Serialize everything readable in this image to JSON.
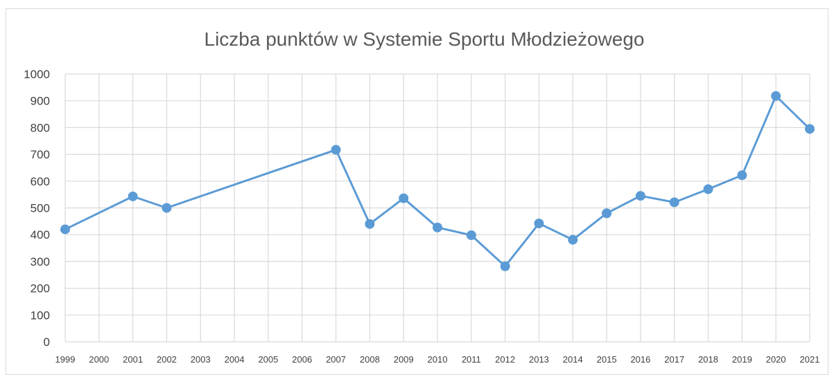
{
  "chart_data": {
    "type": "line",
    "title": "Liczba punktów w Systemie Sportu Młodzieżowego",
    "xlabel": "",
    "ylabel": "",
    "ylim": [
      0,
      1000
    ],
    "yticks": [
      0,
      100,
      200,
      300,
      400,
      500,
      600,
      700,
      800,
      900,
      1000
    ],
    "categories": [
      "1999",
      "2000",
      "2001",
      "2002",
      "2003",
      "2004",
      "2005",
      "2006",
      "2007",
      "2008",
      "2009",
      "2010",
      "2011",
      "2012",
      "2013",
      "2014",
      "2015",
      "2016",
      "2017",
      "2018",
      "2019",
      "2020",
      "2021"
    ],
    "series": [
      {
        "color": "#5b9bd5",
        "values": [
          420,
          null,
          543,
          500,
          null,
          null,
          null,
          null,
          717,
          440,
          536,
          427,
          398,
          282,
          442,
          381,
          480,
          545,
          521,
          570,
          622,
          918,
          795
        ]
      }
    ],
    "grid": true,
    "legend": "none"
  },
  "colors": {
    "series": "#5b9bd5",
    "grid": "#d9d9d9",
    "text": "#404040",
    "title": "#595959"
  }
}
